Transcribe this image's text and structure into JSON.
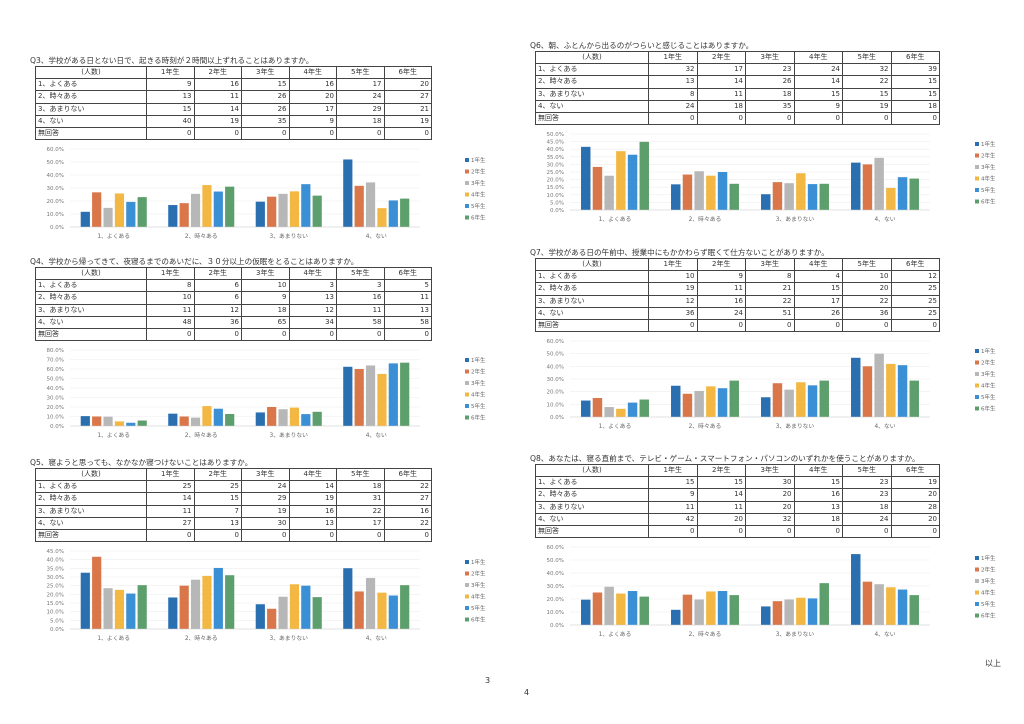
{
  "header_cols": [
    "(人数)",
    "1年生",
    "2年生",
    "3年生",
    "4年生",
    "5年生",
    "6年生"
  ],
  "questions": [
    {
      "title": "Q3、学校がある日とない日で、起きる時刻が２時間以上ずれることはありますか。",
      "rows": [
        {
          "label": "1、よくある",
          "values": [
            9,
            16,
            15,
            16,
            17,
            20
          ]
        },
        {
          "label": "2、時々ある",
          "values": [
            13,
            11,
            26,
            20,
            24,
            27
          ]
        },
        {
          "label": "3、あまりない",
          "values": [
            15,
            14,
            26,
            17,
            29,
            21
          ]
        },
        {
          "label": "4、ない",
          "values": [
            40,
            19,
            35,
            9,
            18,
            19
          ]
        },
        {
          "label": "無回答",
          "values": [
            0,
            0,
            0,
            0,
            0,
            0
          ]
        }
      ]
    },
    {
      "title": "Q4、学校から帰ってきて、夜寝るまでのあいだに、３０分以上の仮眠をとることはありますか。",
      "rows": [
        {
          "label": "1、よくある",
          "values": [
            8,
            6,
            10,
            3,
            3,
            5
          ]
        },
        {
          "label": "2、時々ある",
          "values": [
            10,
            6,
            9,
            13,
            16,
            11
          ]
        },
        {
          "label": "3、あまりない",
          "values": [
            11,
            12,
            18,
            12,
            11,
            13
          ]
        },
        {
          "label": "4、ない",
          "values": [
            48,
            36,
            65,
            34,
            58,
            58
          ]
        },
        {
          "label": "無回答",
          "values": [
            0,
            0,
            0,
            0,
            0,
            0
          ]
        }
      ]
    },
    {
      "title": "Q5、寝ようと思っても、なかなか寝つけないことはありますか。",
      "rows": [
        {
          "label": "1、よくある",
          "values": [
            25,
            25,
            24,
            14,
            18,
            22
          ]
        },
        {
          "label": "2、時々ある",
          "values": [
            14,
            15,
            29,
            19,
            31,
            27
          ]
        },
        {
          "label": "3、あまりない",
          "values": [
            11,
            7,
            19,
            16,
            22,
            16
          ]
        },
        {
          "label": "4、ない",
          "values": [
            27,
            13,
            30,
            13,
            17,
            22
          ]
        },
        {
          "label": "無回答",
          "values": [
            0,
            0,
            0,
            0,
            0,
            0
          ]
        }
      ]
    },
    {
      "title": "Q6、朝、ふとんから出るのがつらいと感じることはありますか。",
      "rows": [
        {
          "label": "1、よくある",
          "values": [
            32,
            17,
            23,
            24,
            32,
            39
          ]
        },
        {
          "label": "2、時々ある",
          "values": [
            13,
            14,
            26,
            14,
            22,
            15
          ]
        },
        {
          "label": "3、あまりない",
          "values": [
            8,
            11,
            18,
            15,
            15,
            15
          ]
        },
        {
          "label": "4、ない",
          "values": [
            24,
            18,
            35,
            9,
            19,
            18
          ]
        },
        {
          "label": "無回答",
          "values": [
            0,
            0,
            0,
            0,
            0,
            0
          ]
        }
      ]
    },
    {
      "title": "Q7、学校がある日の午前中、授業中にもかかわらず眠くて仕方ないことがありますか。",
      "rows": [
        {
          "label": "1、よくある",
          "values": [
            10,
            9,
            8,
            4,
            10,
            12
          ]
        },
        {
          "label": "2、時々ある",
          "values": [
            19,
            11,
            21,
            15,
            20,
            25
          ]
        },
        {
          "label": "3、あまりない",
          "values": [
            12,
            16,
            22,
            17,
            22,
            25
          ]
        },
        {
          "label": "4、ない",
          "values": [
            36,
            24,
            51,
            26,
            36,
            25
          ]
        },
        {
          "label": "無回答",
          "values": [
            0,
            0,
            0,
            0,
            0,
            0
          ]
        }
      ]
    },
    {
      "title": "Q8、あなたは、寝る直前まで、テレビ・ゲーム・スマートフォン・パソコンのいずれかを使うことがありますか。",
      "rows": [
        {
          "label": "1、よくある",
          "values": [
            15,
            15,
            30,
            15,
            23,
            19
          ]
        },
        {
          "label": "2、時々ある",
          "values": [
            9,
            14,
            20,
            16,
            23,
            20
          ]
        },
        {
          "label": "3、あまりない",
          "values": [
            11,
            11,
            20,
            13,
            18,
            28
          ]
        },
        {
          "label": "4、ない",
          "values": [
            42,
            20,
            32,
            18,
            24,
            20
          ]
        },
        {
          "label": "無回答",
          "values": [
            0,
            0,
            0,
            0,
            0,
            0
          ]
        }
      ]
    }
  ],
  "chart_data": [
    {
      "type": "bar",
      "title": "Q3",
      "categories": [
        "1、よくある",
        "2、時々ある",
        "3、あまりない",
        "4、ない"
      ],
      "value_basis": "percent of each grade's respondents (from table counts)",
      "ylim": [
        0,
        60
      ],
      "ystep": 10,
      "legend": "right"
    },
    {
      "type": "bar",
      "title": "Q4",
      "categories": [
        "1、よくある",
        "2、時々ある",
        "3、あまりない",
        "4、ない"
      ],
      "value_basis": "percent of each grade's respondents (from table counts)",
      "ylim": [
        0,
        80
      ],
      "ystep": 10,
      "legend": "right"
    },
    {
      "type": "bar",
      "title": "Q5",
      "categories": [
        "1、よくある",
        "2、時々ある",
        "3、あまりない",
        "4、ない"
      ],
      "value_basis": "percent of each grade's respondents (from table counts)",
      "ylim": [
        0,
        45
      ],
      "ystep": 5,
      "legend": "right"
    },
    {
      "type": "bar",
      "title": "Q6",
      "categories": [
        "1、よくある",
        "2、時々ある",
        "3、あまりない",
        "4、ない"
      ],
      "value_basis": "percent of each grade's respondents (from table counts)",
      "ylim": [
        0,
        50
      ],
      "ystep": 5,
      "legend": "right"
    },
    {
      "type": "bar",
      "title": "Q7",
      "categories": [
        "1、よくある",
        "2、時々ある",
        "3、あまりない",
        "4、ない"
      ],
      "value_basis": "percent of each grade's respondents (from table counts)",
      "ylim": [
        0,
        60
      ],
      "ystep": 10,
      "legend": "right"
    },
    {
      "type": "bar",
      "title": "Q8",
      "categories": [
        "1、よくある",
        "2、時々ある",
        "3、あまりない",
        "4、ない"
      ],
      "value_basis": "percent of each grade's respondents (from table counts)",
      "ylim": [
        0,
        60
      ],
      "ystep": 10,
      "legend": "right"
    }
  ],
  "series_names": [
    "1年生",
    "2年生",
    "3年生",
    "4年生",
    "5年生",
    "6年生"
  ],
  "series_colors": [
    "#2a6fb0",
    "#d9764a",
    "#b7b7b7",
    "#f3b843",
    "#3b8fd4",
    "#5c9f6c"
  ],
  "footer": {
    "page_left": "3",
    "page_right": "4",
    "end_mark": "以上"
  }
}
